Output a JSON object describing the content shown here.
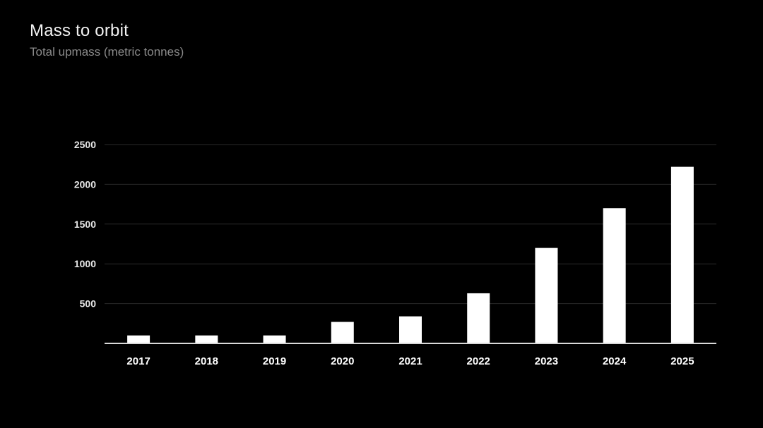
{
  "title": "Mass to orbit",
  "subtitle": "Total upmass (metric tonnes)",
  "colors": {
    "background": "#000000",
    "bar": "#ffffff",
    "grid": "#2a2a2a",
    "title": "#f2f2f2",
    "subtitle": "#8a8a8a"
  },
  "chart_data": {
    "type": "bar",
    "title": "Mass to orbit",
    "subtitle": "Total upmass (metric tonnes)",
    "xlabel": "",
    "ylabel": "",
    "categories": [
      "2017",
      "2018",
      "2019",
      "2020",
      "2021",
      "2022",
      "2023",
      "2024",
      "2025"
    ],
    "values": [
      100,
      100,
      100,
      270,
      340,
      630,
      1200,
      1700,
      2220
    ],
    "ylim": [
      0,
      2500
    ],
    "yticks": [
      500,
      1000,
      1500,
      2000,
      2500
    ],
    "grid": true,
    "legend": "none"
  }
}
